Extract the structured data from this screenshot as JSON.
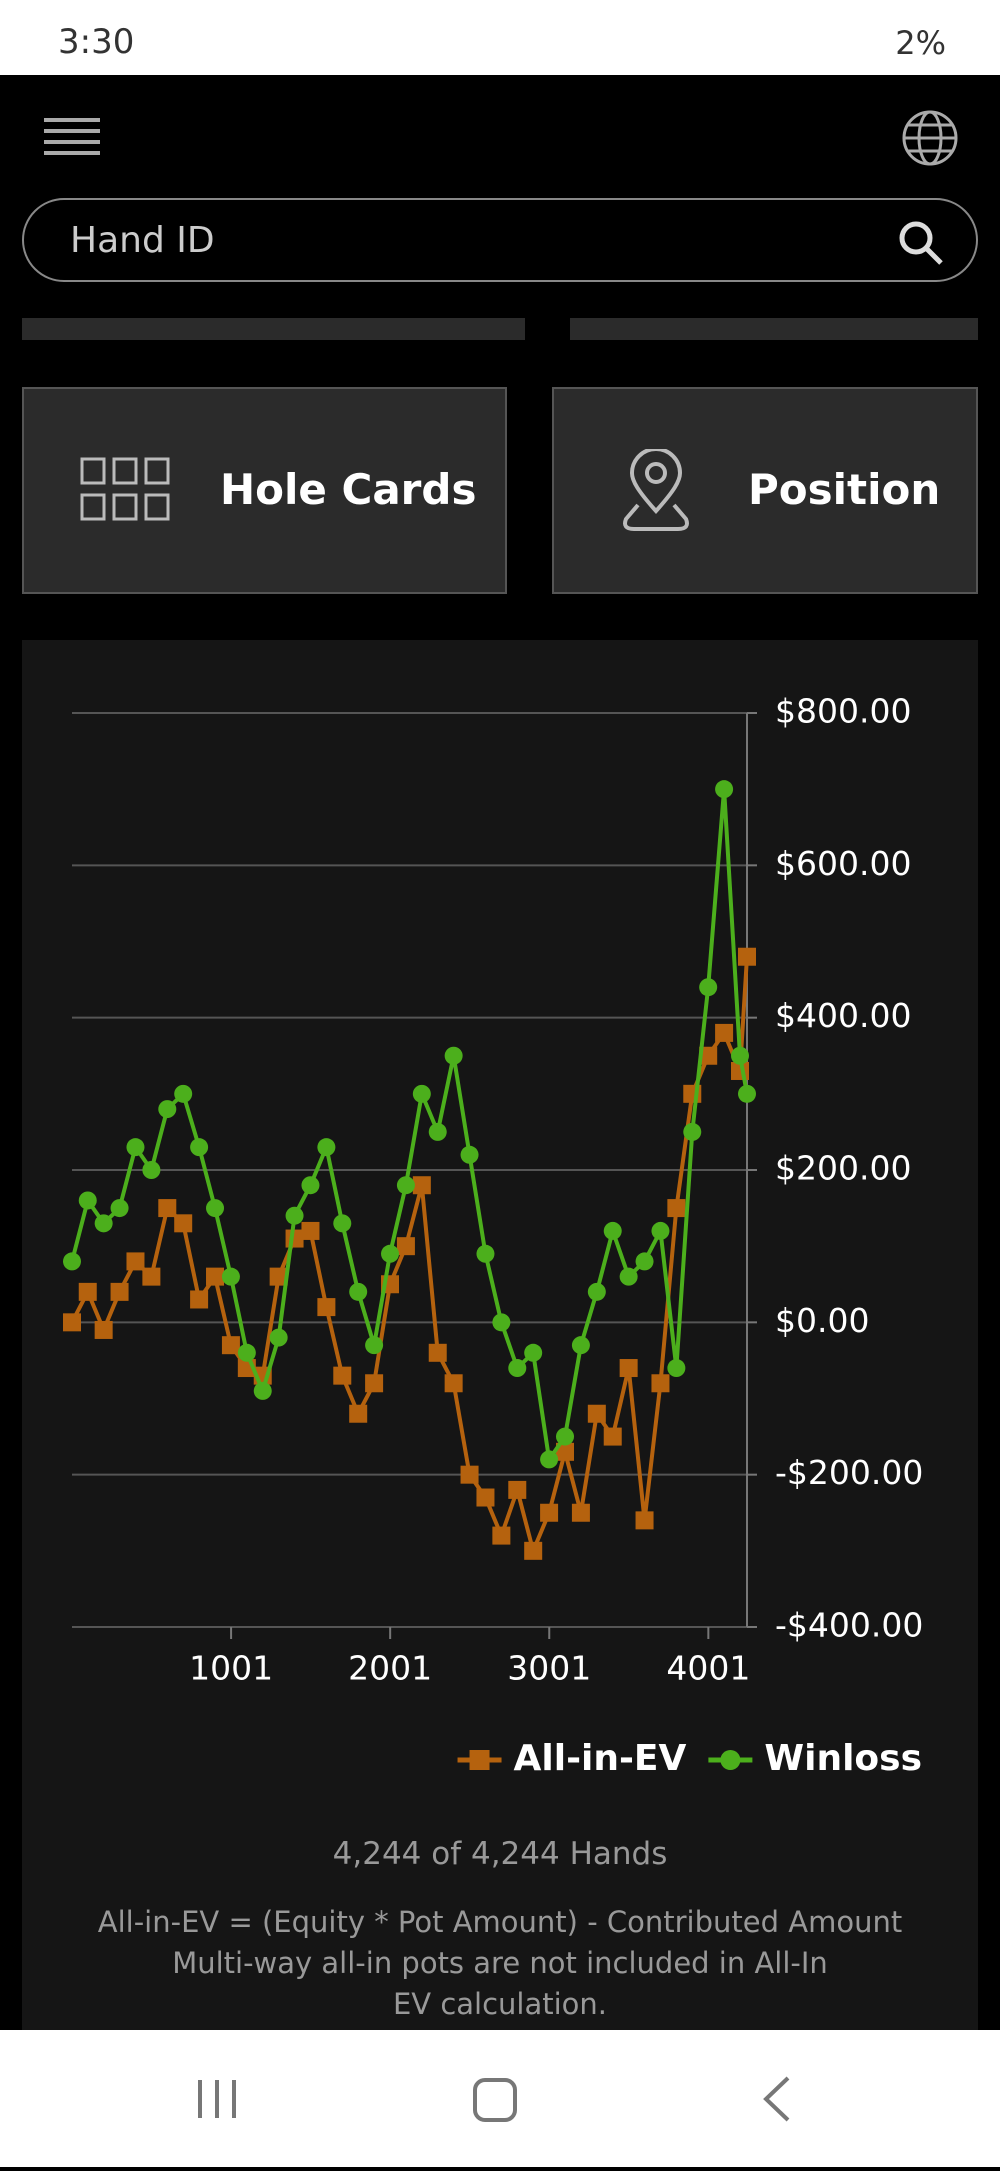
{
  "status_bar": {
    "time": "3:30",
    "battery": "2%"
  },
  "search": {
    "placeholder": "Hand ID"
  },
  "buttons": [
    "Hole Cards",
    "Position"
  ],
  "chart_data": {
    "type": "line",
    "x": [
      1,
      100,
      200,
      300,
      400,
      500,
      600,
      700,
      800,
      900,
      1000,
      1100,
      1200,
      1300,
      1400,
      1500,
      1600,
      1700,
      1800,
      1900,
      2000,
      2100,
      2200,
      2300,
      2400,
      2500,
      2600,
      2700,
      2800,
      2900,
      3000,
      3100,
      3200,
      3300,
      3400,
      3500,
      3600,
      3700,
      3800,
      3900,
      4000,
      4100,
      4200,
      4244
    ],
    "series": [
      {
        "name": "All-in-EV",
        "color": "#b5620e",
        "marker": "square",
        "values": [
          0,
          40,
          -10,
          40,
          80,
          60,
          150,
          130,
          30,
          60,
          -30,
          -60,
          -70,
          60,
          110,
          120,
          20,
          -70,
          -120,
          -80,
          50,
          100,
          180,
          -40,
          -80,
          -200,
          -230,
          -280,
          -220,
          -300,
          -250,
          -170,
          -250,
          -120,
          -150,
          -60,
          -260,
          -80,
          150,
          300,
          350,
          380,
          330,
          480
        ]
      },
      {
        "name": "Winloss",
        "color": "#4caf1c",
        "marker": "circle",
        "values": [
          80,
          160,
          130,
          150,
          230,
          200,
          280,
          300,
          230,
          150,
          60,
          -40,
          -90,
          -20,
          140,
          180,
          230,
          130,
          40,
          -30,
          90,
          180,
          300,
          250,
          350,
          220,
          90,
          0,
          -60,
          -40,
          -180,
          -150,
          -30,
          40,
          120,
          60,
          80,
          120,
          -60,
          250,
          440,
          700,
          350,
          300
        ]
      }
    ],
    "xlim": [
      1,
      4244
    ],
    "xticks": [
      1001,
      2001,
      3001,
      4001
    ],
    "ylim": [
      -400,
      800
    ],
    "yticks": [
      {
        "value": 800,
        "label": "$800.00"
      },
      {
        "value": 600,
        "label": "$600.00"
      },
      {
        "value": 400,
        "label": "$400.00"
      },
      {
        "value": 200,
        "label": "$200.00"
      },
      {
        "value": 0,
        "label": "$0.00"
      },
      {
        "value": -200,
        "label": "-$200.00"
      },
      {
        "value": -400,
        "label": "-$400.00"
      }
    ],
    "grid": true,
    "legend": "bottom-right"
  },
  "hands_count": "4,244 of 4,244 Hands",
  "notes": [
    "All-in-EV = (Equity * Pot Amount) - Contributed Amount",
    "Multi-way all-in pots are not included in All-In EV calculation."
  ]
}
